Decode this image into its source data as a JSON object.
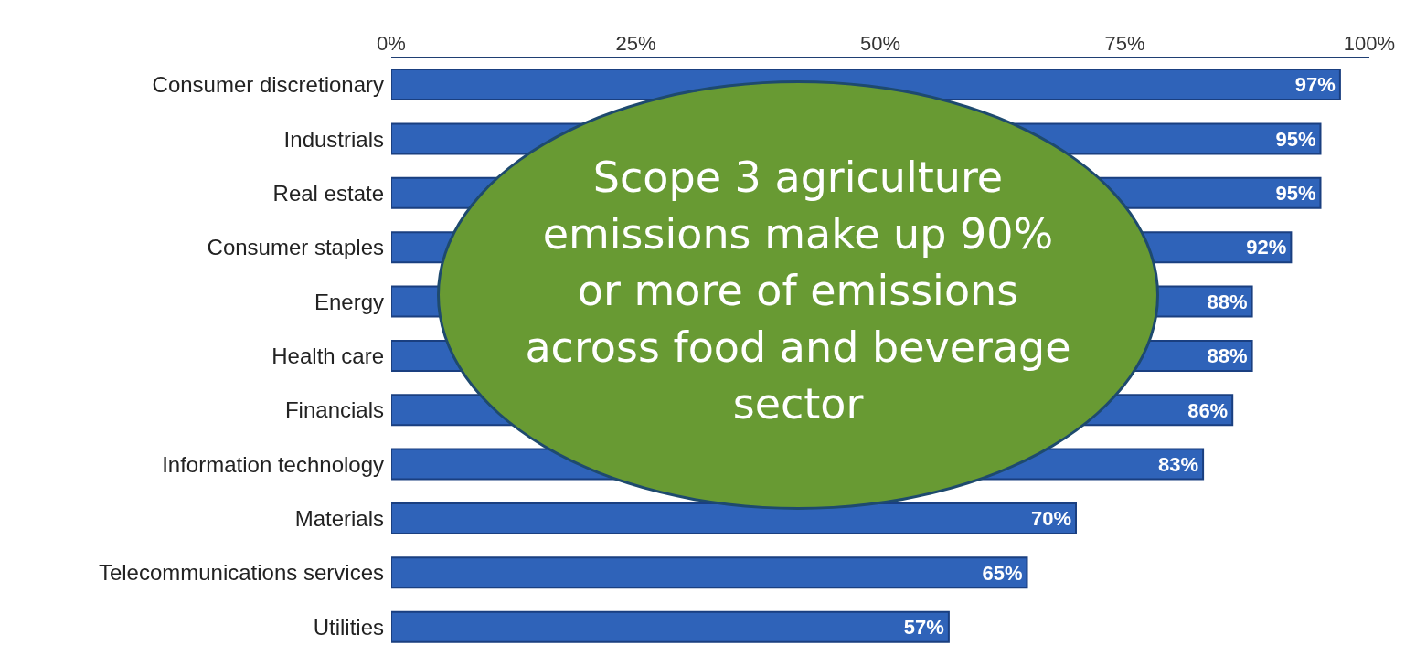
{
  "chart_data": {
    "type": "bar",
    "orientation": "horizontal",
    "categories": [
      "Consumer discretionary",
      "Industrials",
      "Real estate",
      "Consumer staples",
      "Energy",
      "Health care",
      "Financials",
      "Information technology",
      "Materials",
      "Telecommunications services",
      "Utilities"
    ],
    "values": [
      97,
      95,
      95,
      92,
      88,
      88,
      86,
      83,
      70,
      65,
      57
    ],
    "value_labels": [
      "97%",
      "95%",
      "95%",
      "92%",
      "88%",
      "88%",
      "86%",
      "83%",
      "70%",
      "65%",
      "57%"
    ],
    "color": "#2f63b9",
    "xlim": [
      0,
      100
    ],
    "xticks": [
      {
        "value": 0,
        "label": "0%"
      },
      {
        "value": 25,
        "label": "25%"
      },
      {
        "value": 50,
        "label": "50%"
      },
      {
        "value": 75,
        "label": "75%"
      },
      {
        "value": 100,
        "label": "100%"
      }
    ],
    "grid": false,
    "annotations": [
      "Scope 3 agriculture emissions make up 90% or more of emissions across food and beverage sector"
    ]
  }
}
